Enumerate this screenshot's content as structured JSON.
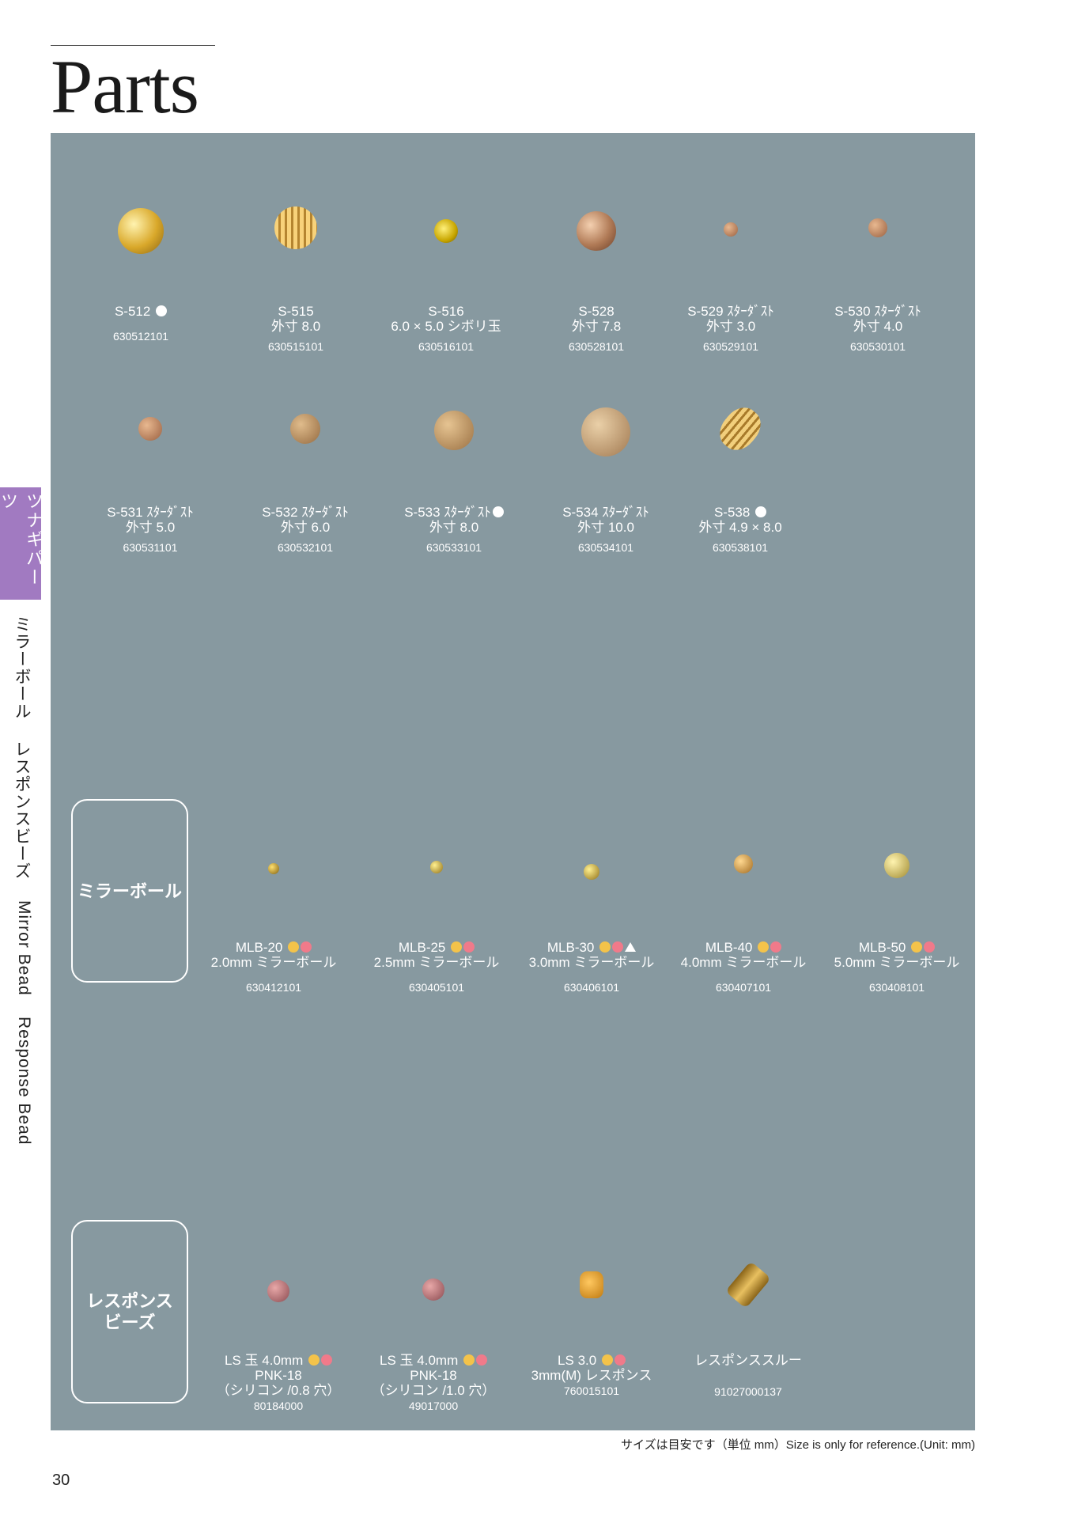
{
  "title": "Parts",
  "side_tab": "ツナギパーツ",
  "side_links": [
    "ミラーボール",
    "レスポンスビーズ",
    "Mirror Bead",
    "Response Bead"
  ],
  "categories": {
    "mirror": "ミラーボール",
    "response_line1": "レスポンス",
    "response_line2": "ビーズ"
  },
  "row1": [
    {
      "line1": "S-512",
      "line2": "",
      "code": "630512101"
    },
    {
      "line1": "S-515",
      "line2": "外寸 8.0",
      "code": "630515101"
    },
    {
      "line1": "S-516",
      "line2": "6.0 × 5.0 シボリ玉",
      "code": "630516101"
    },
    {
      "line1": "S-528",
      "line2": "外寸 7.8",
      "code": "630528101"
    },
    {
      "line1": "S-529 ｽﾀｰﾀﾞｽﾄ",
      "line2": "外寸 3.0",
      "code": "630529101"
    },
    {
      "line1": "S-530 ｽﾀｰﾀﾞｽﾄ",
      "line2": "外寸 4.0",
      "code": "630530101"
    }
  ],
  "row2": [
    {
      "line1": "S-531 ｽﾀｰﾀﾞｽﾄ",
      "line2": "外寸 5.0",
      "code": "630531101"
    },
    {
      "line1": "S-532 ｽﾀｰﾀﾞｽﾄ",
      "line2": "外寸 6.0",
      "code": "630532101"
    },
    {
      "line1": "S-533 ｽﾀｰﾀﾞｽﾄ",
      "line2": "外寸 8.0",
      "code": "630533101"
    },
    {
      "line1": "S-534 ｽﾀｰﾀﾞｽﾄ",
      "line2": "外寸 10.0",
      "code": "630534101"
    },
    {
      "line1": "S-538",
      "line2": "外寸 4.9 × 8.0",
      "code": "630538101"
    }
  ],
  "mirror_items": [
    {
      "line1": "MLB-20",
      "line2": "2.0mm ミラーボール",
      "code": "630412101"
    },
    {
      "line1": "MLB-25",
      "line2": "2.5mm ミラーボール",
      "code": "630405101"
    },
    {
      "line1": "MLB-30",
      "line2": "3.0mm ミラーボール",
      "code": "630406101"
    },
    {
      "line1": "MLB-40",
      "line2": "4.0mm ミラーボール",
      "code": "630407101"
    },
    {
      "line1": "MLB-50",
      "line2": "5.0mm ミラーボール",
      "code": "630408101"
    }
  ],
  "response_items": [
    {
      "line1": "LS 玉 4.0mm",
      "line2": "PNK-18",
      "line3": "（シリコン /0.8 穴）",
      "code": "80184000"
    },
    {
      "line1": "LS 玉 4.0mm",
      "line2": "PNK-18",
      "line3": "（シリコン /1.0 穴）",
      "code": "49017000"
    },
    {
      "line1": "LS 3.0",
      "line2": "3mm(M) レスポンス",
      "line3": "",
      "code": "760015101"
    },
    {
      "line1": "レスポンススルー",
      "line2": "",
      "line3": "",
      "code": "91027000137"
    }
  ],
  "footnote": "サイズは目安です（単位 mm）Size is only for reference.(Unit: mm)",
  "page_number": "30",
  "colors": {
    "panel": "#8799a0",
    "tab": "#a17ac1",
    "dot_yellow": "#f4c34a",
    "dot_pink": "#f07a8a"
  }
}
